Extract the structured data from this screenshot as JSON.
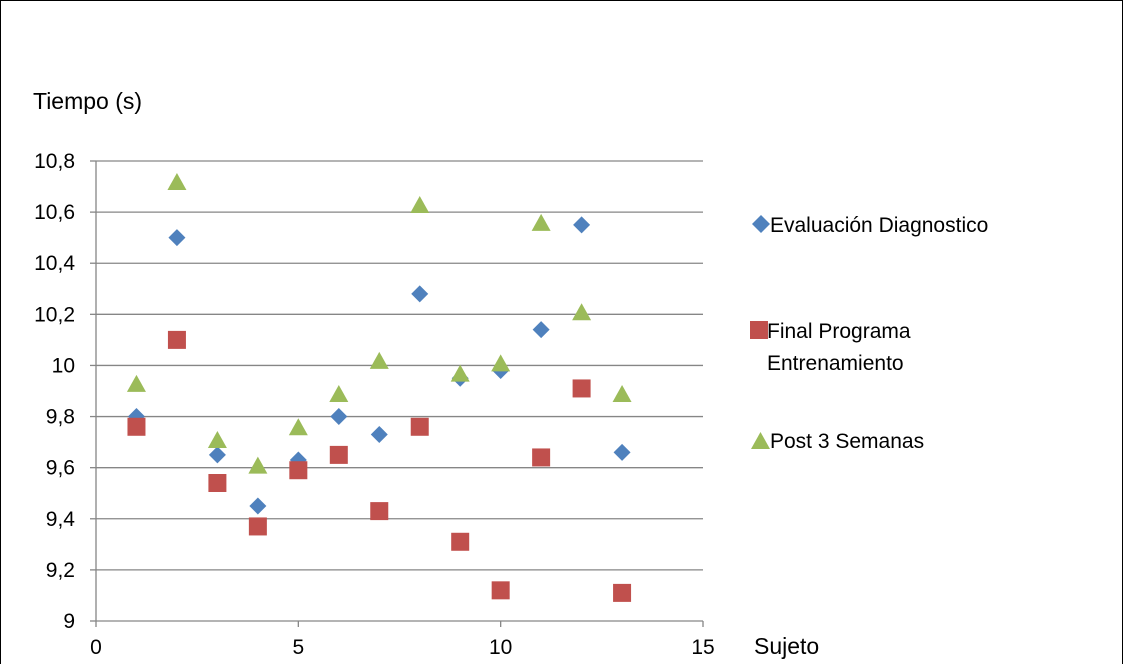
{
  "chart_data": {
    "type": "scatter",
    "xlabel": "Sujeto",
    "ylabel": "Tiempo (s)",
    "xlim": [
      0,
      15
    ],
    "ylim": [
      9,
      10.8
    ],
    "x_ticks": [
      0,
      5,
      10,
      15
    ],
    "x_tick_labels": [
      "0",
      "5",
      "10",
      "15"
    ],
    "y_ticks": [
      9,
      9.2,
      9.4,
      9.6,
      9.8,
      10,
      10.2,
      10.4,
      10.6,
      10.8
    ],
    "y_tick_labels": [
      "9",
      "9,2",
      "9,4",
      "9,6",
      "9,8",
      "10",
      "10,2",
      "10,4",
      "10,6",
      "10,8"
    ],
    "grid": "horizontal",
    "legend_position": "right",
    "series": [
      {
        "name": "Evaluación Diagnostico",
        "marker": "diamond",
        "color": "#4F81BD",
        "x": [
          1,
          2,
          3,
          4,
          5,
          6,
          7,
          8,
          9,
          10,
          11,
          12,
          13
        ],
        "y": [
          9.8,
          10.5,
          9.65,
          9.45,
          9.63,
          9.8,
          9.73,
          10.28,
          9.95,
          9.98,
          10.14,
          10.55,
          9.66
        ]
      },
      {
        "name_lines": [
          "Final Programa",
          "Entrenamiento"
        ],
        "marker": "square",
        "color": "#C0504D",
        "x": [
          1,
          2,
          3,
          4,
          5,
          6,
          7,
          8,
          9,
          10,
          11,
          12,
          13
        ],
        "y": [
          9.76,
          10.1,
          9.54,
          9.37,
          9.59,
          9.65,
          9.43,
          9.76,
          9.31,
          9.12,
          9.64,
          9.91,
          9.11
        ]
      },
      {
        "name": "Post 3 Semanas",
        "marker": "triangle",
        "color": "#9BBB59",
        "x": [
          1,
          2,
          3,
          4,
          5,
          6,
          7,
          8,
          9,
          10,
          11,
          12,
          13
        ],
        "y": [
          9.93,
          10.72,
          9.71,
          9.61,
          9.76,
          9.89,
          10.02,
          10.63,
          9.97,
          10.01,
          10.56,
          10.21,
          9.89
        ]
      }
    ]
  }
}
